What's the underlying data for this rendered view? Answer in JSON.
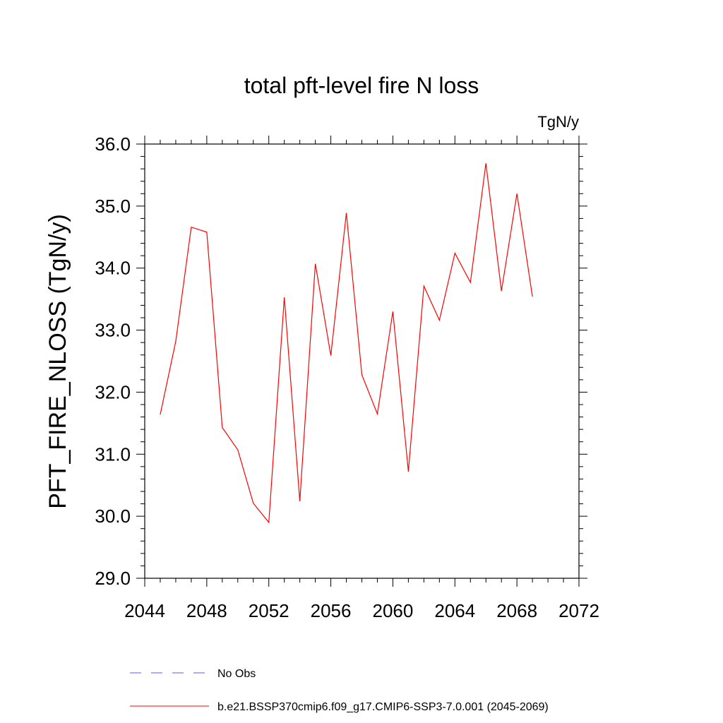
{
  "chart_data": {
    "type": "line",
    "title": "total pft-level fire N loss",
    "units": "TgN/y",
    "xlabel": "",
    "ylabel": "PFT_FIRE_NLOSS  (TgN/y)",
    "xlim": [
      2044,
      2072
    ],
    "ylim": [
      29.0,
      36.0
    ],
    "x_ticks": [
      2044,
      2048,
      2052,
      2056,
      2060,
      2064,
      2068,
      2072
    ],
    "x_tick_labels": [
      "2044",
      "2048",
      "2052",
      "2056",
      "2060",
      "2064",
      "2068",
      "2072"
    ],
    "y_ticks": [
      29.0,
      30.0,
      31.0,
      32.0,
      33.0,
      34.0,
      35.0,
      36.0
    ],
    "y_tick_labels": [
      "29.0",
      "30.0",
      "31.0",
      "32.0",
      "33.0",
      "34.0",
      "35.0",
      "36.0"
    ],
    "grid": false,
    "legend_position": "bottom",
    "series": [
      {
        "name": "b.e21.BSSP370cmip6.f09_g17.CMIP6-SSP3-7.0.001 (2045-2069)",
        "color": "#ff0000",
        "style": "solid",
        "x": [
          2045,
          2046,
          2047,
          2048,
          2049,
          2050,
          2051,
          2052,
          2053,
          2054,
          2055,
          2056,
          2057,
          2058,
          2059,
          2060,
          2061,
          2062,
          2063,
          2064,
          2065,
          2066,
          2067,
          2068,
          2069
        ],
        "y": [
          31.64,
          32.82,
          34.66,
          34.58,
          31.43,
          31.07,
          30.21,
          29.9,
          33.53,
          30.24,
          34.07,
          32.59,
          34.89,
          32.28,
          31.65,
          33.3,
          30.72,
          33.71,
          33.16,
          34.24,
          33.77,
          35.69,
          33.63,
          35.2,
          33.54
        ]
      },
      {
        "name": "No Obs",
        "color": "#5b5bd6",
        "style": "dashed",
        "x": [],
        "y": []
      }
    ]
  }
}
